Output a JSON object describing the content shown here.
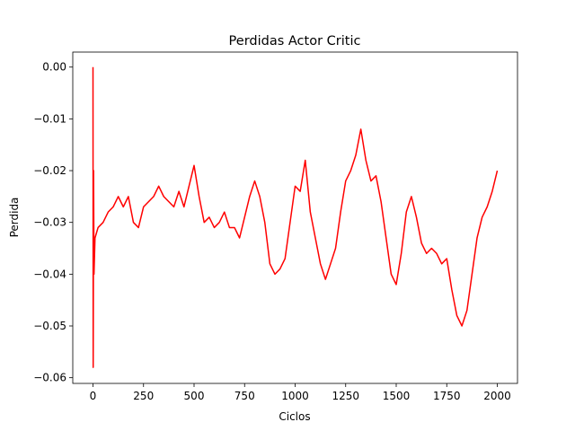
{
  "chart_data": {
    "type": "line",
    "title": "Perdidas Actor Critic",
    "x_label": "Ciclos",
    "y_label": "Perdida",
    "x": [
      0,
      1,
      3,
      5,
      10,
      25,
      50,
      75,
      100,
      125,
      150,
      175,
      200,
      225,
      250,
      275,
      300,
      325,
      350,
      375,
      400,
      425,
      450,
      475,
      500,
      525,
      550,
      575,
      600,
      625,
      650,
      675,
      700,
      725,
      750,
      775,
      800,
      825,
      850,
      875,
      900,
      925,
      950,
      975,
      1000,
      1025,
      1050,
      1075,
      1100,
      1125,
      1150,
      1175,
      1200,
      1225,
      1250,
      1275,
      1300,
      1325,
      1350,
      1375,
      1400,
      1425,
      1450,
      1475,
      1500,
      1525,
      1550,
      1575,
      1600,
      1625,
      1650,
      1675,
      1700,
      1725,
      1750,
      1775,
      1800,
      1825,
      1850,
      1875,
      1900,
      1925,
      1950,
      1975,
      2000
    ],
    "series": [
      {
        "color": "#ff0000",
        "values": [
          0.0,
          -0.058,
          -0.02,
          -0.04,
          -0.033,
          -0.031,
          -0.03,
          -0.028,
          -0.027,
          -0.025,
          -0.027,
          -0.025,
          -0.03,
          -0.031,
          -0.027,
          -0.026,
          -0.025,
          -0.023,
          -0.025,
          -0.026,
          -0.027,
          -0.024,
          -0.027,
          -0.023,
          -0.019,
          -0.025,
          -0.03,
          -0.029,
          -0.031,
          -0.03,
          -0.028,
          -0.031,
          -0.031,
          -0.033,
          -0.029,
          -0.025,
          -0.022,
          -0.025,
          -0.03,
          -0.038,
          -0.04,
          -0.039,
          -0.037,
          -0.03,
          -0.023,
          -0.024,
          -0.018,
          -0.028,
          -0.033,
          -0.038,
          -0.041,
          -0.038,
          -0.035,
          -0.028,
          -0.022,
          -0.02,
          -0.017,
          -0.012,
          -0.018,
          -0.022,
          -0.021,
          -0.026,
          -0.033,
          -0.04,
          -0.042,
          -0.036,
          -0.028,
          -0.025,
          -0.029,
          -0.034,
          -0.036,
          -0.035,
          -0.036,
          -0.038,
          -0.037,
          -0.043,
          -0.048,
          -0.05,
          -0.047,
          -0.04,
          -0.033,
          -0.029,
          -0.027,
          -0.024,
          -0.02
        ]
      }
    ],
    "xlim": [
      -100,
      2100
    ],
    "ylim": [
      -0.0611,
      0.0029
    ],
    "xticks": [
      0,
      250,
      500,
      750,
      1000,
      1250,
      1500,
      1750,
      2000
    ],
    "yticks": [
      {
        "value": 0,
        "label": "0.00"
      },
      {
        "value": -0.01,
        "label": "−0.01"
      },
      {
        "value": -0.02,
        "label": "−0.02"
      },
      {
        "value": -0.03,
        "label": "−0.03"
      },
      {
        "value": -0.04,
        "label": "−0.04"
      },
      {
        "value": -0.05,
        "label": "−0.05"
      },
      {
        "value": -0.06,
        "label": "−0.06"
      }
    ]
  }
}
